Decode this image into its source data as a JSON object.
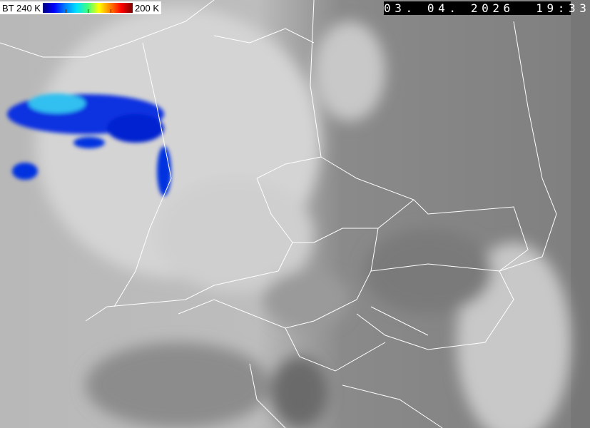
{
  "legend": {
    "label_left": "BT 240 K",
    "label_right": "200 K",
    "colors": [
      "#00007a",
      "#0000ff",
      "#00e0ff",
      "#ffff00",
      "#ff0000",
      "#7a0000"
    ]
  },
  "timestamp": "03. 04. 2026  19:33"
}
